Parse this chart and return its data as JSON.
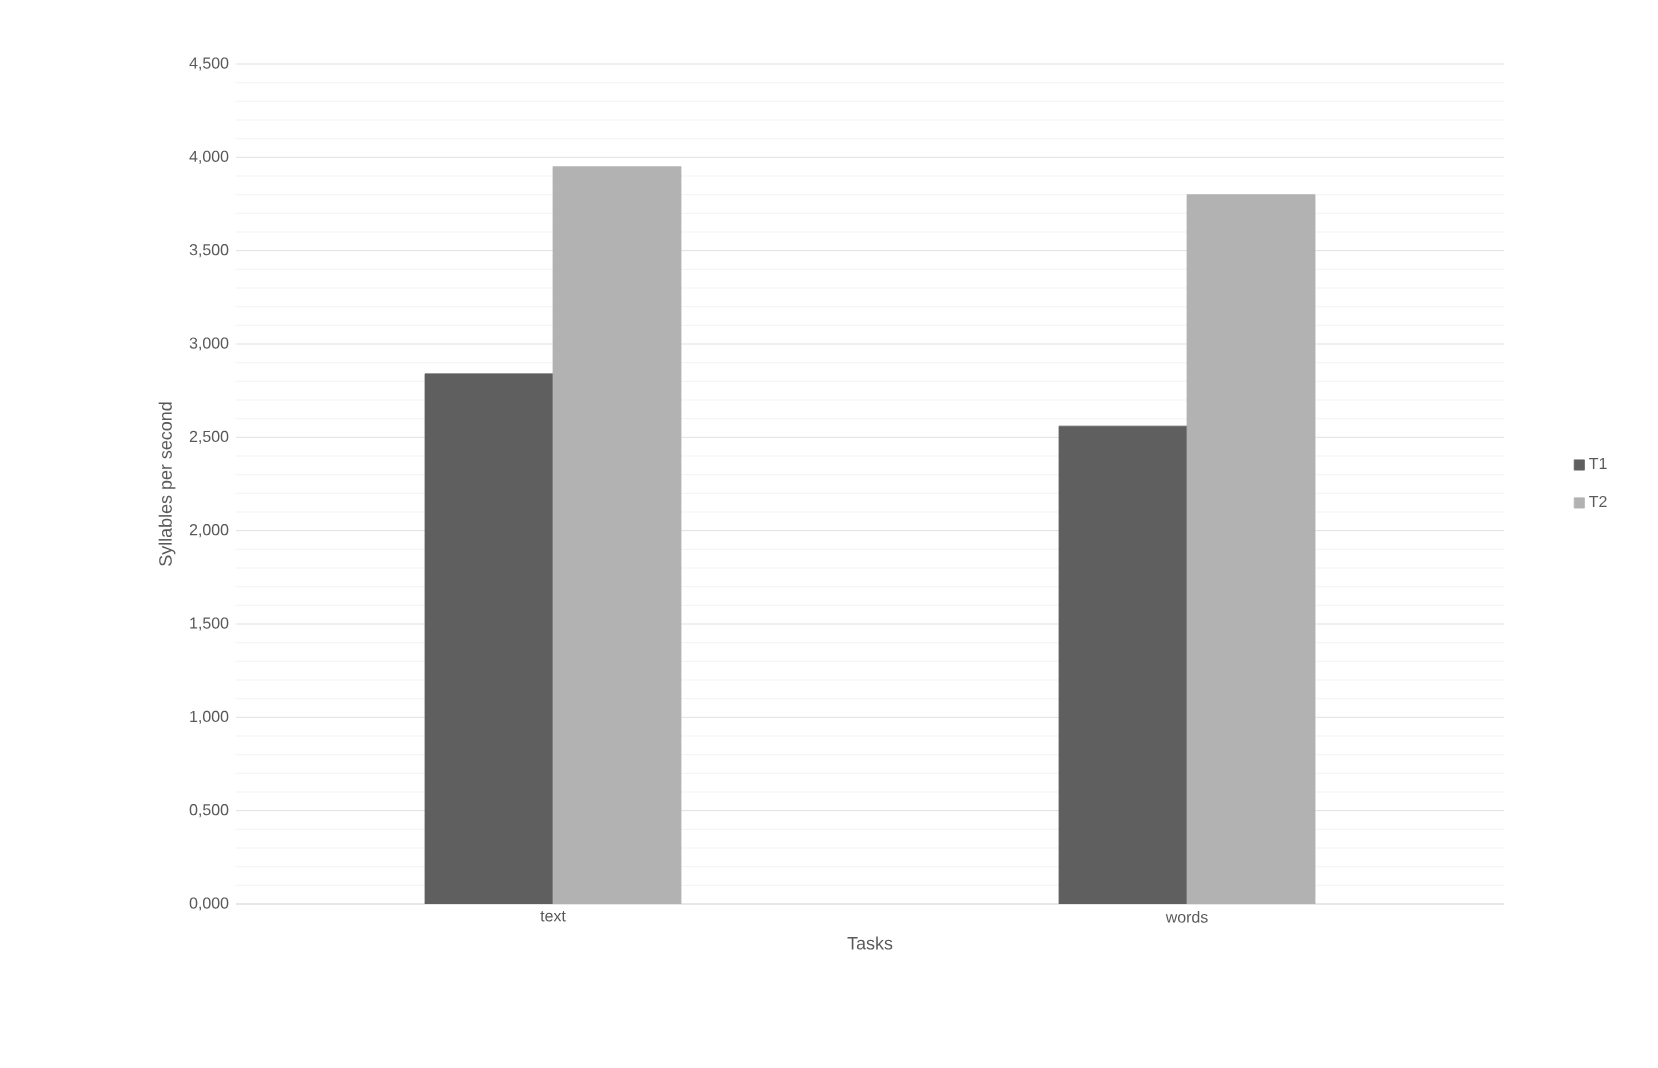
{
  "chart_data": {
    "type": "bar",
    "xlabel": "Tasks",
    "ylabel": "Syllables per second",
    "categories": [
      "text",
      "words"
    ],
    "series": [
      {
        "name": "T1",
        "color": "#5f5f5f",
        "values": [
          2.84,
          2.56
        ]
      },
      {
        "name": "T2",
        "color": "#b2b2b2",
        "values": [
          3.95,
          3.8
        ]
      }
    ],
    "ylim": [
      0,
      4.5
    ],
    "yticks": [
      {
        "value": 0,
        "label": "0,000"
      },
      {
        "value": 0.5,
        "label": "0,500"
      },
      {
        "value": 1,
        "label": "1,000"
      },
      {
        "value": 1.5,
        "label": "1,500"
      },
      {
        "value": 2,
        "label": "2,000"
      },
      {
        "value": 2.5,
        "label": "2,500"
      },
      {
        "value": 3,
        "label": "3,000"
      },
      {
        "value": 3.5,
        "label": "3,500"
      },
      {
        "value": 4,
        "label": "4,000"
      },
      {
        "value": 4.5,
        "label": "4,500"
      }
    ],
    "grid": "y",
    "legend": "right"
  }
}
